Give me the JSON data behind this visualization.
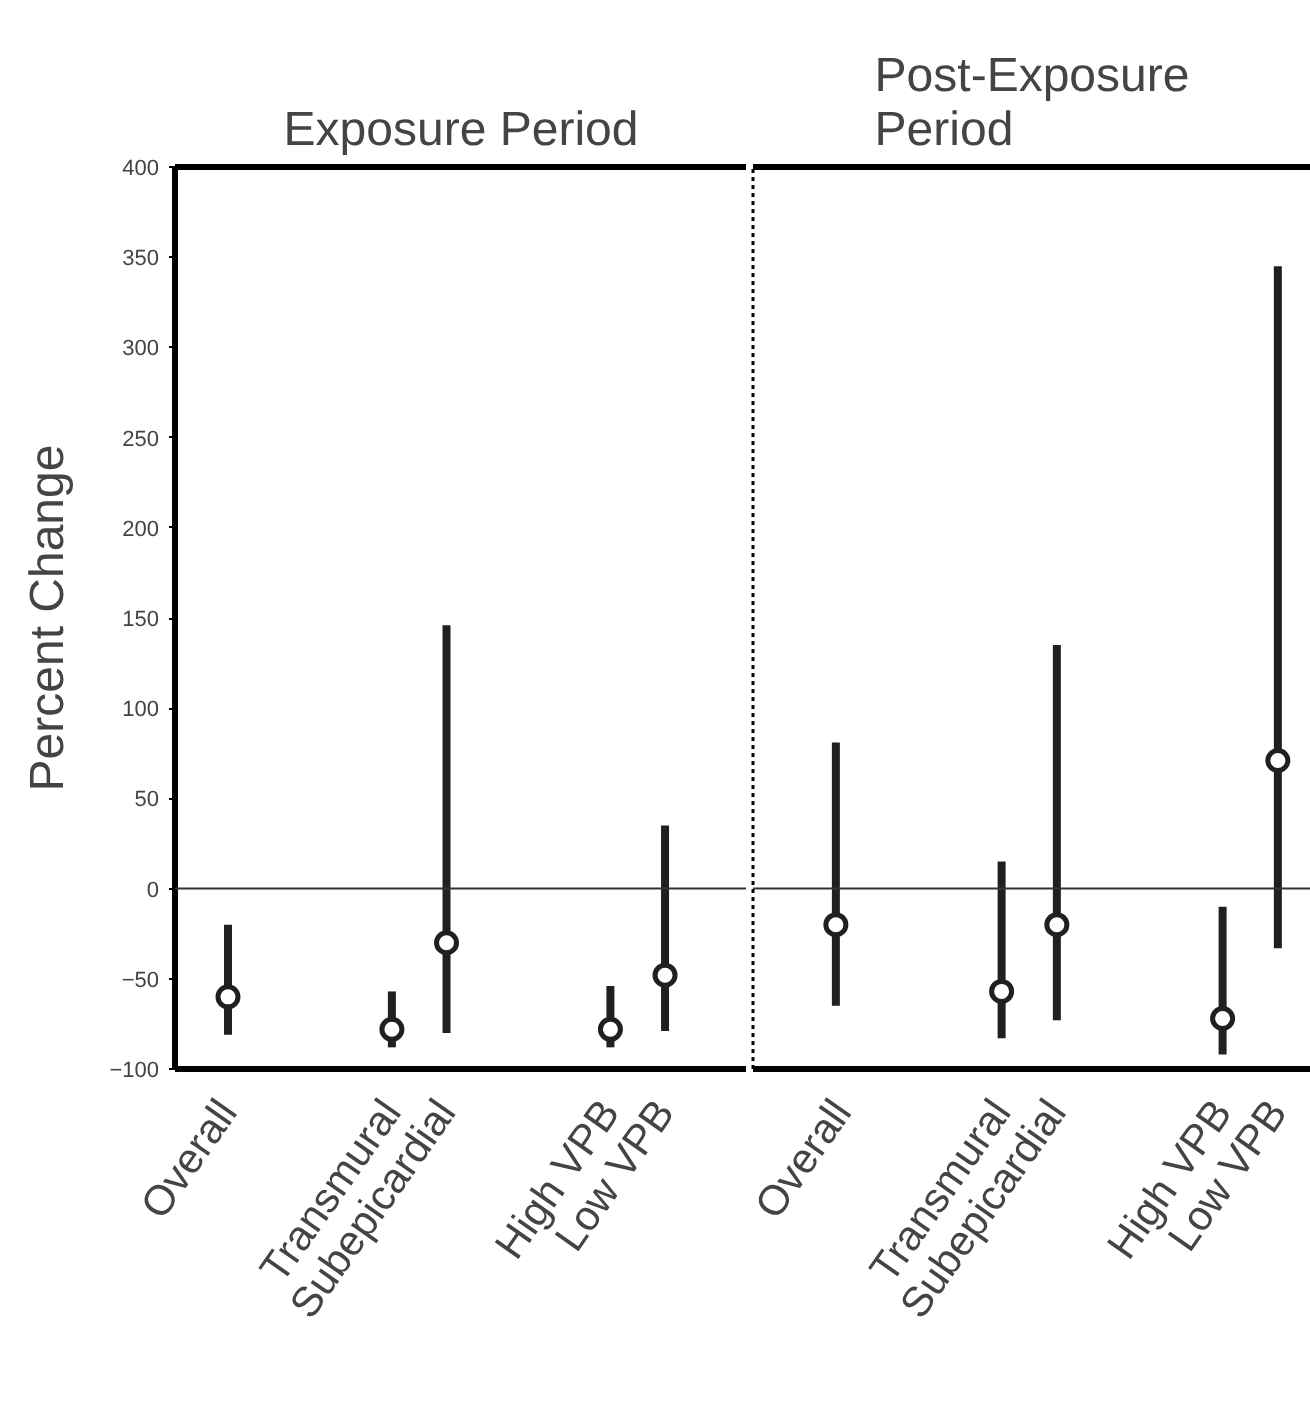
{
  "chart_data": [
    {
      "type": "scatter",
      "title": "Exposure Period",
      "ylabel": "Percent Change",
      "categories": [
        "Overall",
        null,
        null,
        "Transmural",
        "Subepicardial",
        null,
        null,
        "High VPB",
        "Low VPB"
      ],
      "series": [
        {
          "color": "#231f20",
          "values": [
            -60,
            null,
            null,
            -78,
            -30,
            null,
            null,
            -78,
            -48
          ],
          "errors": [
            [
              -81,
              -20
            ],
            null,
            null,
            [
              -88,
              -57
            ],
            [
              -80,
              146
            ],
            null,
            null,
            [
              -88,
              -54
            ],
            [
              -79,
              35
            ]
          ]
        }
      ],
      "marker": "circle",
      "ylim": [
        -100,
        400
      ],
      "yticks": [
        -100,
        -50,
        0,
        50,
        100,
        150,
        200,
        250,
        300,
        350,
        400
      ],
      "ref_lines": [
        {
          "axis": "y",
          "value": 0
        }
      ]
    },
    {
      "type": "scatter",
      "title": "Post-Exposure Period",
      "categories": [
        "Overall",
        null,
        null,
        "Transmural",
        "Subepicardial",
        null,
        null,
        "High VPB",
        "Low VPB"
      ],
      "series": [
        {
          "color": "#231f20",
          "values": [
            -20,
            null,
            null,
            -57,
            -20,
            null,
            null,
            -72,
            71
          ],
          "errors": [
            [
              -65,
              81
            ],
            null,
            null,
            [
              -83,
              15
            ],
            [
              -73,
              135
            ],
            null,
            null,
            [
              -92,
              -10
            ],
            [
              -33,
              345
            ]
          ]
        }
      ],
      "marker": "circle",
      "ylim": [
        -100,
        400
      ],
      "yticks": [
        -100,
        -50,
        0,
        50,
        100,
        150,
        200,
        250,
        300,
        350,
        400
      ],
      "ref_lines": [
        {
          "axis": "y",
          "value": 0
        }
      ],
      "tick_labels": "x"
    }
  ]
}
